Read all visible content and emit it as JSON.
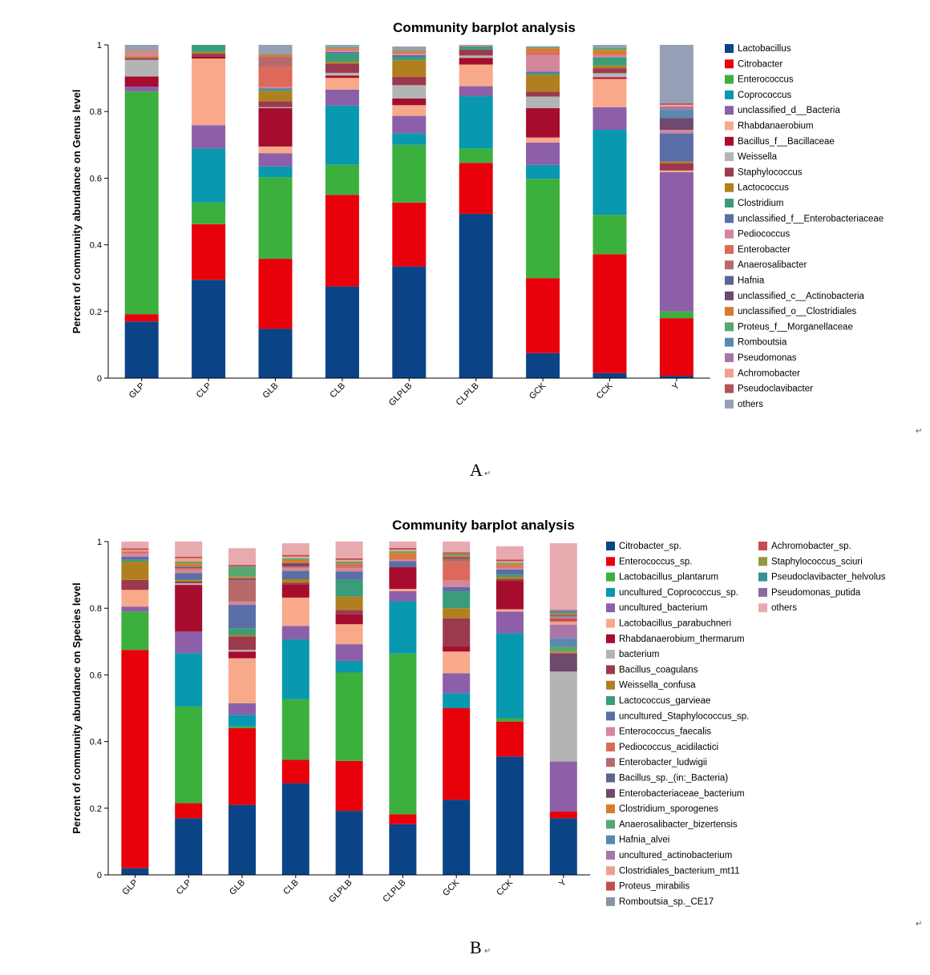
{
  "figures": [
    {
      "caption": "A",
      "return_mark": "↵"
    },
    {
      "caption": "B",
      "return_mark": "↵"
    }
  ],
  "chart_data": [
    {
      "type": "bar",
      "stacked": true,
      "title": "Community barplot analysis",
      "ylabel": "Percent of community abundance on Genus level",
      "xlabel": "",
      "ylim": [
        0,
        1
      ],
      "yticks": [
        "0",
        "0.2",
        "0.4",
        "0.6",
        "0.8",
        "1"
      ],
      "legend_position": "right",
      "categories": [
        "GLP",
        "CLP",
        "GLB",
        "CLB",
        "GLPLB",
        "CLPLB",
        "GCK",
        "CCK",
        "Y"
      ],
      "series": [
        {
          "name": "Lactobacillus",
          "color": "#0a4487",
          "values": [
            0.17,
            0.295,
            0.148,
            0.275,
            0.335,
            0.493,
            0.075,
            0.015,
            0.007
          ]
        },
        {
          "name": "Citrobacter",
          "color": "#e8000b",
          "values": [
            0.022,
            0.167,
            0.21,
            0.275,
            0.192,
            0.153,
            0.225,
            0.357,
            0.173
          ]
        },
        {
          "name": "Enterococcus",
          "color": "#3cb03c",
          "values": [
            0.668,
            0.065,
            0.245,
            0.09,
            0.173,
            0.043,
            0.298,
            0.118,
            0.02
          ]
        },
        {
          "name": "Coprococcus",
          "color": "#0898b0",
          "values": [
            0,
            0.162,
            0.032,
            0.178,
            0.035,
            0.157,
            0.042,
            0.255,
            0
          ]
        },
        {
          "name": "unclassified_d__Bacteria",
          "color": "#8c5fa8",
          "values": [
            0.015,
            0.07,
            0.04,
            0.048,
            0.052,
            0.03,
            0.067,
            0.068,
            0.418
          ]
        },
        {
          "name": "Rhabdanaerobium",
          "color": "#f8a98a",
          "values": [
            0,
            0.2,
            0.02,
            0.035,
            0.032,
            0.065,
            0.015,
            0.085,
            0.005
          ]
        },
        {
          "name": "Bacillus_f__Bacillaceae",
          "color": "#a50c2e",
          "values": [
            0.03,
            0.005,
            0.115,
            0.007,
            0.02,
            0.02,
            0.088,
            0.005,
            0
          ]
        },
        {
          "name": "Weissella",
          "color": "#b3b5b5",
          "values": [
            0.05,
            0,
            0.003,
            0.008,
            0.04,
            0.007,
            0.035,
            0.012,
            0
          ]
        },
        {
          "name": "Staphylococcus",
          "color": "#9b3a4e",
          "values": [
            0.005,
            0.01,
            0.018,
            0.028,
            0.025,
            0.018,
            0.015,
            0.015,
            0.022
          ]
        },
        {
          "name": "Lactococcus",
          "color": "#b0801e",
          "values": [
            0.005,
            0.005,
            0.03,
            0.005,
            0.05,
            0,
            0.05,
            0.008,
            0.005
          ]
        },
        {
          "name": "Clostridium",
          "color": "#3a9c78",
          "values": [
            0,
            0.02,
            0.005,
            0.025,
            0.01,
            0.01,
            0.005,
            0.025,
            0
          ]
        },
        {
          "name": "unclassified_f__Enterobacteriaceae",
          "color": "#5a6ea8",
          "values": [
            0,
            0.005,
            0.003,
            0.005,
            0.005,
            0,
            0.005,
            0,
            0.085
          ]
        },
        {
          "name": "Pediococcus",
          "color": "#d4869b",
          "values": [
            0.015,
            0.01,
            0.005,
            0.005,
            0.005,
            0.005,
            0.05,
            0.005,
            0.01
          ]
        },
        {
          "name": "Enterobacter",
          "color": "#dd6a59",
          "values": [
            0,
            0.005,
            0.06,
            0.003,
            0.005,
            0,
            0.01,
            0.005,
            0
          ]
        },
        {
          "name": "Anaerosalibacter",
          "color": "#b86a6a",
          "values": [
            0,
            0,
            0.032,
            0,
            0,
            0,
            0,
            0,
            0
          ]
        },
        {
          "name": "Hafnia",
          "color": "#5a6590",
          "values": [
            0,
            0,
            0,
            0,
            0,
            0,
            0,
            0,
            0
          ]
        },
        {
          "name": "unclassified_c__Actinobacteria",
          "color": "#6e4a6e",
          "values": [
            0,
            0,
            0,
            0,
            0,
            0,
            0,
            0,
            0.035
          ]
        },
        {
          "name": "unclassified_o__Clostridiales",
          "color": "#d97b2e",
          "values": [
            0.003,
            0.02,
            0.005,
            0.003,
            0.003,
            0,
            0.01,
            0.012,
            0
          ]
        },
        {
          "name": "Proteus_f__Morganellaceae",
          "color": "#55a870",
          "values": [
            0,
            0.003,
            0.002,
            0.003,
            0.003,
            0.005,
            0.003,
            0.007,
            0
          ]
        },
        {
          "name": "Romboutsia",
          "color": "#5b88ad",
          "values": [
            0,
            0,
            0,
            0,
            0,
            0,
            0,
            0,
            0.025
          ]
        },
        {
          "name": "Pseudomonas",
          "color": "#a877a8",
          "values": [
            0,
            0,
            0,
            0,
            0,
            0,
            0,
            0,
            0.01
          ]
        },
        {
          "name": "Achromobacter",
          "color": "#f0a090",
          "values": [
            0,
            0,
            0,
            0,
            0,
            0,
            0,
            0,
            0.005
          ]
        },
        {
          "name": "Pseudoclavibacter",
          "color": "#b3545a",
          "values": [
            0,
            0,
            0,
            0,
            0,
            0,
            0,
            0,
            0.005
          ]
        },
        {
          "name": "others",
          "color": "#969fb5",
          "values": [
            0.017,
            0.013,
            0.027,
            0.007,
            0.01,
            0.007,
            0.003,
            0.008,
            0.175
          ]
        }
      ]
    },
    {
      "type": "bar",
      "stacked": true,
      "title": "Community barplot analysis",
      "ylabel": "Percent of community abundance on Species level",
      "xlabel": "",
      "ylim": [
        0,
        1
      ],
      "yticks": [
        "0",
        "0.2",
        "0.4",
        "0.6",
        "0.8",
        "1"
      ],
      "legend_position": "right",
      "categories": [
        "GLP",
        "CLP",
        "GLB",
        "CLB",
        "GLPLB",
        "CLPLB",
        "GCK",
        "CCK",
        "Y"
      ],
      "series": [
        {
          "name": "Citrobacter_sp.",
          "color": "#0a4487",
          "values": [
            0.02,
            0.17,
            0.21,
            0.275,
            0.192,
            0.152,
            0.225,
            0.355,
            0.17
          ]
        },
        {
          "name": "Enterococcus_sp.",
          "color": "#e8000b",
          "values": [
            0.655,
            0.045,
            0.23,
            0.07,
            0.15,
            0.03,
            0.275,
            0.105,
            0.02
          ]
        },
        {
          "name": "Lactobacillus_plantarum",
          "color": "#3cb03c",
          "values": [
            0.115,
            0.29,
            0.005,
            0.182,
            0.265,
            0.482,
            0,
            0.01,
            0
          ]
        },
        {
          "name": "uncultured_Coprococcus_sp.",
          "color": "#0898b0",
          "values": [
            0,
            0.16,
            0.035,
            0.18,
            0.035,
            0.157,
            0.045,
            0.255,
            0
          ]
        },
        {
          "name": "uncultured_bacterium",
          "color": "#8c5fa8",
          "values": [
            0.015,
            0.065,
            0.035,
            0.04,
            0.05,
            0.03,
            0.06,
            0.065,
            0.15
          ]
        },
        {
          "name": "Lactobacillus_parabuchneri",
          "color": "#f8a98a",
          "values": [
            0.05,
            0,
            0.135,
            0.085,
            0.06,
            0.007,
            0.065,
            0.007,
            0
          ]
        },
        {
          "name": "Rhabdanaerobium_thermarum",
          "color": "#a50c2e",
          "values": [
            0,
            0.14,
            0.02,
            0.04,
            0.03,
            0.065,
            0.015,
            0.085,
            0
          ]
        },
        {
          "name": "bacterium",
          "color": "#b3b5b5",
          "values": [
            0,
            0.005,
            0.005,
            0,
            0,
            0,
            0,
            0,
            0.27
          ]
        },
        {
          "name": "Bacillus_coagulans",
          "color": "#9b3a4e",
          "values": [
            0.03,
            0.005,
            0.04,
            0.005,
            0.013,
            0,
            0.085,
            0.005,
            0
          ]
        },
        {
          "name": "Weissella_confusa",
          "color": "#b0801e",
          "values": [
            0.055,
            0.005,
            0.005,
            0.01,
            0.04,
            0,
            0.03,
            0.007,
            0
          ]
        },
        {
          "name": "Lactococcus_garvieae",
          "color": "#3a9c78",
          "values": [
            0.005,
            0,
            0.02,
            0,
            0.05,
            0,
            0.05,
            0.007,
            0
          ]
        },
        {
          "name": "uncultured_Staphylococcus_sp.",
          "color": "#5a6ea8",
          "values": [
            0.01,
            0.02,
            0.07,
            0.025,
            0.025,
            0.018,
            0.013,
            0.015,
            0
          ]
        },
        {
          "name": "Enterococcus_faecalis",
          "color": "#d4869b",
          "values": [
            0.01,
            0.01,
            0.01,
            0.008,
            0.01,
            0.005,
            0.02,
            0.005,
            0
          ]
        },
        {
          "name": "Pediococcus_acidilactici",
          "color": "#dd6a59",
          "values": [
            0.005,
            0.005,
            0,
            0.005,
            0.005,
            0.005,
            0.055,
            0.005,
            0
          ]
        },
        {
          "name": "Enterobacter_ludwigii",
          "color": "#b86a6a",
          "values": [
            0,
            0,
            0.065,
            0,
            0.005,
            0,
            0.01,
            0,
            0
          ]
        },
        {
          "name": "Bacillus_sp._(in:_Bacteria)",
          "color": "#5a6590",
          "values": [
            0,
            0.005,
            0,
            0,
            0,
            0,
            0,
            0,
            0
          ]
        },
        {
          "name": "Enterobacteriaceae_bacterium",
          "color": "#6e4a6e",
          "values": [
            0,
            0,
            0.005,
            0.01,
            0,
            0,
            0.005,
            0,
            0.055
          ]
        },
        {
          "name": "Clostridium_sporogenes",
          "color": "#d97b2e",
          "values": [
            0,
            0.01,
            0.005,
            0.01,
            0.005,
            0.015,
            0.005,
            0.005,
            0.005
          ]
        },
        {
          "name": "Anaerosalibacter_bizertensis",
          "color": "#55a870",
          "values": [
            0,
            0.005,
            0.03,
            0.005,
            0.005,
            0.005,
            0.005,
            0.005,
            0.015
          ]
        },
        {
          "name": "Hafnia_alvei",
          "color": "#5b88ad",
          "values": [
            0,
            0,
            0,
            0,
            0,
            0,
            0,
            0,
            0.025
          ]
        },
        {
          "name": "uncultured_actinobacterium",
          "color": "#a877a8",
          "values": [
            0,
            0,
            0,
            0,
            0,
            0,
            0,
            0,
            0.04
          ]
        },
        {
          "name": "Clostridiales_bacterium_mt11",
          "color": "#f0a090",
          "values": [
            0.005,
            0.01,
            0,
            0.005,
            0.005,
            0.005,
            0,
            0.005,
            0.01
          ]
        },
        {
          "name": "Proteus_mirabilis",
          "color": "#c05050",
          "values": [
            0.005,
            0.005,
            0.005,
            0.005,
            0.005,
            0.005,
            0.005,
            0.005,
            0.01
          ]
        },
        {
          "name": "Romboutsia_sp._CE17",
          "color": "#8a93a8",
          "values": [
            0,
            0,
            0,
            0,
            0,
            0,
            0,
            0,
            0.005
          ]
        },
        {
          "name": "Achromobacter_sp.",
          "color": "#c74a50",
          "values": [
            0,
            0,
            0,
            0,
            0,
            0,
            0,
            0,
            0.005
          ]
        },
        {
          "name": "Staphylococcus_sciuri",
          "color": "#8e9a3c",
          "values": [
            0,
            0,
            0,
            0,
            0,
            0,
            0,
            0,
            0.005
          ]
        },
        {
          "name": "Pseudoclavibacter_helvolus",
          "color": "#3a9090",
          "values": [
            0,
            0,
            0,
            0,
            0,
            0,
            0,
            0,
            0.005
          ]
        },
        {
          "name": "Pseudomonas_putida",
          "color": "#8a6aa0",
          "values": [
            0,
            0,
            0,
            0,
            0,
            0,
            0,
            0,
            0.005
          ]
        },
        {
          "name": "others",
          "color": "#e7aaaf",
          "values": [
            0.025,
            0.045,
            0.05,
            0.035,
            0.05,
            0.029,
            0.032,
            0.04,
            0.2
          ]
        }
      ]
    }
  ]
}
